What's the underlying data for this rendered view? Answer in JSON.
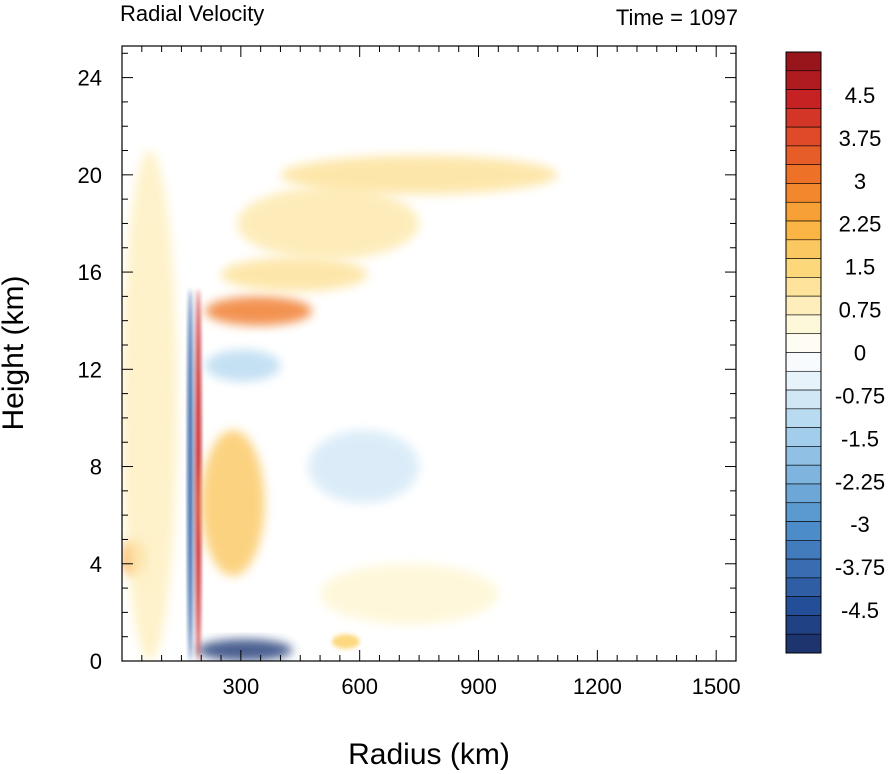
{
  "chart_data": {
    "type": "heatmap",
    "title": "Radial Velocity",
    "subtitle": "Time = 1097",
    "xlabel": "Radius (km)",
    "ylabel": "Height (km)",
    "xlim": [
      0,
      1550
    ],
    "ylim": [
      0,
      25.3
    ],
    "xticks": [
      300,
      600,
      900,
      1200,
      1500
    ],
    "xtick_labels": [
      "300",
      "600",
      "900",
      "1200",
      "1500"
    ],
    "yticks": [
      0,
      4,
      8,
      12,
      16,
      20,
      24
    ],
    "ytick_labels": [
      "0",
      "4",
      "8",
      "12",
      "16",
      "20",
      "24"
    ],
    "grid": false,
    "colorbar": {
      "levels": 32,
      "range": [
        -5.25,
        5.25
      ],
      "tick_values": [
        4.5,
        3.75,
        3,
        2.25,
        1.5,
        0.75,
        0,
        -0.75,
        -1.5,
        -2.25,
        -3,
        -3.75,
        -4.5
      ],
      "tick_labels": [
        "4.5",
        "3.75",
        "3",
        "2.25",
        "1.5",
        "0.75",
        "0",
        "-0.75",
        "-1.5",
        "-2.25",
        "-3",
        "-3.75",
        "-4.5"
      ]
    },
    "features": [
      {
        "r": [
          190,
          430
        ],
        "z": [
          0,
          0.9
        ],
        "value": -5.0
      },
      {
        "r": [
          165,
          180
        ],
        "z": [
          0,
          15.3
        ],
        "value": -4.0
      },
      {
        "r": [
          185,
          200
        ],
        "z": [
          0,
          15.3
        ],
        "value": 4.5
      },
      {
        "r": [
          210,
          480
        ],
        "z": [
          13.8,
          15.0
        ],
        "value": 3.0
      },
      {
        "r": [
          250,
          620
        ],
        "z": [
          15.2,
          16.6
        ],
        "value": 1.2
      },
      {
        "r": [
          290,
          750
        ],
        "z": [
          16.5,
          19.5
        ],
        "value": 1.0
      },
      {
        "r": [
          400,
          1100
        ],
        "z": [
          19.2,
          20.8
        ],
        "value": 1.2
      },
      {
        "r": [
          210,
          400
        ],
        "z": [
          11.5,
          12.8
        ],
        "value": -1.2
      },
      {
        "r": [
          200,
          360
        ],
        "z": [
          3.5,
          9.5
        ],
        "value": 1.8
      },
      {
        "r": [
          0,
          60
        ],
        "z": [
          3.5,
          5.0
        ],
        "value": 2.5
      },
      {
        "r": [
          0,
          140
        ],
        "z": [
          0,
          21
        ],
        "value": 0.8
      },
      {
        "r": [
          470,
          750
        ],
        "z": [
          6.5,
          9.5
        ],
        "value": -0.8
      },
      {
        "r": [
          500,
          950
        ],
        "z": [
          1.5,
          4.0
        ],
        "value": 0.6
      },
      {
        "r": [
          530,
          600
        ],
        "z": [
          0.5,
          1.1
        ],
        "value": 1.5
      }
    ]
  }
}
